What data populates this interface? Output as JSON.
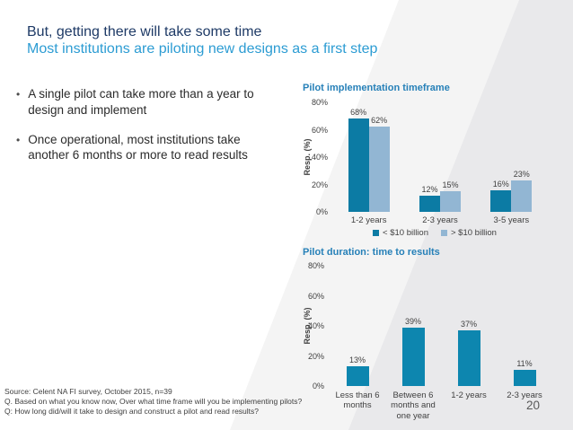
{
  "slide": {
    "title": "But, getting there will take some time",
    "subtitle": "Most institutions are piloting new designs as a first step",
    "page_number": "20",
    "bullet_marker": "•"
  },
  "bullets": [
    "A single pilot can take more than a year to design and implement",
    "Once operational, most institutions take another 6 months or more to read results"
  ],
  "source_lines": [
    "Source: Celent NA FI survey, October 2015, n=39",
    "Q. Based on what you know now, Over what time frame will you be implementing pilots?",
    "Q: How long did/will it take to design and construct a pilot and read results?"
  ],
  "colors": {
    "title": "#1e3a66",
    "subtitle": "#2c9cd3",
    "chart_title": "#2680b8",
    "bar_dark_teal": "#0c7ba4",
    "bar_light_blue": "#92b6d3",
    "bar_single_teal": "#0d86af",
    "background_band_light": "#f4f4f4",
    "background_band_dark": "#e9e9eb"
  },
  "chart_data": [
    {
      "type": "bar",
      "title": "Pilot implementation timeframe",
      "categories": [
        "1-2 years",
        "2-3 years",
        "3-5 years"
      ],
      "series": [
        {
          "name": "< $10 billion",
          "color": "#0c7ba4",
          "values": [
            68,
            12,
            16
          ]
        },
        {
          "name": "> $10 billion",
          "color": "#92b6d3",
          "values": [
            62,
            15,
            23
          ]
        }
      ],
      "xlabel": "",
      "ylabel": "Resp. (%)",
      "ylim": [
        0,
        80
      ],
      "yticks": [
        "0%",
        "20%",
        "40%",
        "60%",
        "80%"
      ],
      "data_labels": [
        "68%",
        "62%",
        "12%",
        "15%",
        "16%",
        "23%"
      ],
      "grid": false,
      "legend_position": "bottom"
    },
    {
      "type": "bar",
      "title": "Pilot duration: time to results",
      "categories": [
        "Less than 6 months",
        "Between 6 months and one year",
        "1-2 years",
        "2-3 years"
      ],
      "series": [
        {
          "name": "",
          "color": "#0d86af",
          "values": [
            13,
            39,
            37,
            11
          ]
        }
      ],
      "xlabel": "",
      "ylabel": "Resp. (%)",
      "ylim": [
        0,
        80
      ],
      "yticks": [
        "0%",
        "20%",
        "40%",
        "60%",
        "80%"
      ],
      "data_labels": [
        "13%",
        "39%",
        "37%",
        "11%"
      ],
      "grid": false,
      "legend_position": "none"
    }
  ]
}
